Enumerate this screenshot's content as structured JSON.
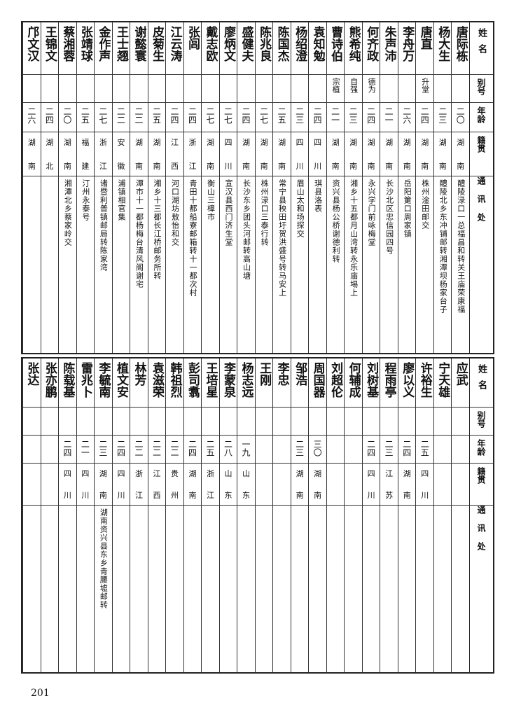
{
  "headers": {
    "name": "姓名",
    "alias": "别号",
    "age": "年龄",
    "native": "籍贯",
    "address": "通讯处"
  },
  "top_table": [
    {
      "name": "唐际栋",
      "alias": "",
      "age": "二〇",
      "native": [
        "湖",
        "南"
      ],
      "address": "醴陵渌口一总福昌和转关王庙荣康福"
    },
    {
      "name": "杨大生",
      "alias": "",
      "age": "二三",
      "native": [
        "湖",
        "南"
      ],
      "address": "醴陵北乡东冲铺邮转湘潭坝杨家台子"
    },
    {
      "name": "唐直",
      "alias": "升堂",
      "age": "二四",
      "native": [
        "湖",
        "南"
      ],
      "address": "株州淦田邮交"
    },
    {
      "name": "李舟万",
      "alias": "",
      "age": "二六",
      "native": [
        "湖",
        "南"
      ],
      "address": "岳阳筻口周家镇"
    },
    {
      "name": "朱声沛",
      "alias": "",
      "age": "二一",
      "native": [
        "湖",
        "南"
      ],
      "address": "长沙北区忠信园四号"
    },
    {
      "name": "何齐政",
      "alias": "德为",
      "age": "二四",
      "native": [
        "湖",
        "南"
      ],
      "address": "永兴学门前咏梅堂"
    },
    {
      "name": "熊希纯",
      "alias": "自强",
      "age": "二三",
      "native": [
        "湖",
        "南"
      ],
      "address": "湘乡十五都月山湾转永乐庙埸上"
    },
    {
      "name": "曹诗伯",
      "alias": "宗植",
      "age": "二一",
      "native": [
        "湖",
        "南"
      ],
      "address": "资兴县杨公桥谢德利转"
    },
    {
      "name": "袁知勉",
      "alias": "",
      "age": "二四",
      "native": [
        "四",
        "川"
      ],
      "address": "琪县洛表"
    },
    {
      "name": "杨绍澄",
      "alias": "",
      "age": "二三",
      "native": [
        "四",
        "川"
      ],
      "address": "眉山太和场探交"
    },
    {
      "name": "陈国杰",
      "alias": "",
      "age": "二五",
      "native": [
        "湖",
        "南"
      ],
      "address": "常宁县秧田圩贺洪盛号转马安上"
    },
    {
      "name": "陈兆良",
      "alias": "",
      "age": "二七",
      "native": [
        "湖",
        "南"
      ],
      "address": "株州渌口三泰行转"
    },
    {
      "name": "盛健夫",
      "alias": "",
      "age": "二四",
      "native": [
        "湖",
        "南"
      ],
      "address": "长沙东乡团头河邮转高山塘"
    },
    {
      "name": "廖炳文",
      "alias": "",
      "age": "二七",
      "native": [
        "四",
        "川"
      ],
      "address": "宣汉县西门济生堂"
    },
    {
      "name": "戴志欧",
      "alias": "",
      "age": "二七",
      "native": [
        "湖",
        "南"
      ],
      "address": "衡山三樟市"
    },
    {
      "name": "张闾",
      "alias": "",
      "age": "二四",
      "native": [
        "浙",
        "江"
      ],
      "address": "青田十都船寮邮箱转十一都次村"
    },
    {
      "name": "江云涛",
      "alias": "",
      "age": "二四",
      "native": [
        "江",
        "西"
      ],
      "address": "河口湖坊敖怡和交"
    },
    {
      "name": "皮菊生",
      "alias": "",
      "age": "二五",
      "native": [
        "湖",
        "南"
      ],
      "address": "湘乡十三都长江桥邮务所转"
    },
    {
      "name": "谢懿寰",
      "alias": "",
      "age": "二二",
      "native": [
        "湖",
        "南"
      ],
      "address": "潭市十一都杨梅台清风阁谢宅"
    },
    {
      "name": "王士翘",
      "alias": "",
      "age": "二二",
      "native": [
        "安",
        "徽"
      ],
      "address": "浦镇相官集"
    },
    {
      "name": "金作声",
      "alias": "",
      "age": "二七",
      "native": [
        "浙",
        "江"
      ],
      "address": "诸暨利普镇邮局转陈家湾"
    },
    {
      "name": "张靖球",
      "alias": "",
      "age": "二五",
      "native": [
        "福",
        "建"
      ],
      "address": "汀州永泰号"
    },
    {
      "name": "蔡湘蓉",
      "alias": "",
      "age": "二〇",
      "native": [
        "湖",
        "南"
      ],
      "address": "湘潭北乡蔡家岭交"
    },
    {
      "name": "王锦文",
      "alias": "",
      "age": "二四",
      "native": [
        "湖",
        "北"
      ],
      "address": ""
    },
    {
      "name": "邝文汉",
      "alias": "",
      "age": "二六",
      "native": [
        "湖",
        "南"
      ],
      "address": ""
    }
  ],
  "bottom_table": [
    {
      "name": "应武",
      "alias": "",
      "age": "",
      "native": [
        "",
        ""
      ],
      "address": ""
    },
    {
      "name": "宁天雄",
      "alias": "",
      "age": "",
      "native": [
        "",
        ""
      ],
      "address": ""
    },
    {
      "name": "许裕生",
      "alias": "",
      "age": "二五",
      "native": [
        "四",
        "川"
      ],
      "address": ""
    },
    {
      "name": "廖以义",
      "alias": "",
      "age": "二四",
      "native": [
        "湖",
        "南"
      ],
      "address": ""
    },
    {
      "name": "程雨亭",
      "alias": "",
      "age": "二三",
      "native": [
        "江",
        "苏"
      ],
      "address": ""
    },
    {
      "name": "刘树基",
      "alias": "",
      "age": "二四",
      "native": [
        "四",
        "川"
      ],
      "address": ""
    },
    {
      "name": "何辅成",
      "alias": "",
      "age": "",
      "native": [
        "",
        ""
      ],
      "address": ""
    },
    {
      "name": "刘超伦",
      "alias": "",
      "age": "",
      "native": [
        "",
        ""
      ],
      "address": ""
    },
    {
      "name": "周国器",
      "alias": "",
      "age": "三〇",
      "native": [
        "湖",
        "南"
      ],
      "address": ""
    },
    {
      "name": "邹浩",
      "alias": "",
      "age": "二三",
      "native": [
        "湖",
        "南"
      ],
      "address": ""
    },
    {
      "name": "李忠",
      "alias": "",
      "age": "",
      "native": [
        "",
        ""
      ],
      "address": ""
    },
    {
      "name": "王刚",
      "alias": "",
      "age": "",
      "native": [
        "",
        ""
      ],
      "address": ""
    },
    {
      "name": "杨志远",
      "alias": "",
      "age": "一九",
      "native": [
        "山",
        "东"
      ],
      "address": ""
    },
    {
      "name": "李蒙泉",
      "alias": "",
      "age": "二八",
      "native": [
        "山",
        "东"
      ],
      "address": ""
    },
    {
      "name": "王培星",
      "alias": "",
      "age": "二五",
      "native": [
        "浙",
        "江"
      ],
      "address": ""
    },
    {
      "name": "彭司翥",
      "alias": "",
      "age": "二四",
      "native": [
        "湖",
        "南"
      ],
      "address": ""
    },
    {
      "name": "韩祖烈",
      "alias": "",
      "age": "二二",
      "native": [
        "贵",
        "州"
      ],
      "address": ""
    },
    {
      "name": "袁滋荣",
      "alias": "",
      "age": "二二",
      "native": [
        "江",
        "西"
      ],
      "address": ""
    },
    {
      "name": "林芳",
      "alias": "",
      "age": "二二",
      "native": [
        "浙",
        "江"
      ],
      "address": ""
    },
    {
      "name": "植文安",
      "alias": "",
      "age": "二四",
      "native": [
        "四",
        "川"
      ],
      "address": ""
    },
    {
      "name": "李毓南",
      "alias": "",
      "age": "二三",
      "native": [
        "湖",
        "南"
      ],
      "address": "湖南资兴县东乡青腰墟邮转"
    },
    {
      "name": "雷兆卜",
      "alias": "",
      "age": "二一",
      "native": [
        "四",
        "川"
      ],
      "address": ""
    },
    {
      "name": "陈载基",
      "alias": "",
      "age": "二四",
      "native": [
        "四",
        "川"
      ],
      "address": ""
    },
    {
      "name": "张亦鹏",
      "alias": "",
      "age": "",
      "native": [
        "",
        ""
      ],
      "address": ""
    },
    {
      "name": "张达",
      "alias": "",
      "age": "",
      "native": [
        "",
        ""
      ],
      "address": ""
    }
  ],
  "page_number": "201"
}
